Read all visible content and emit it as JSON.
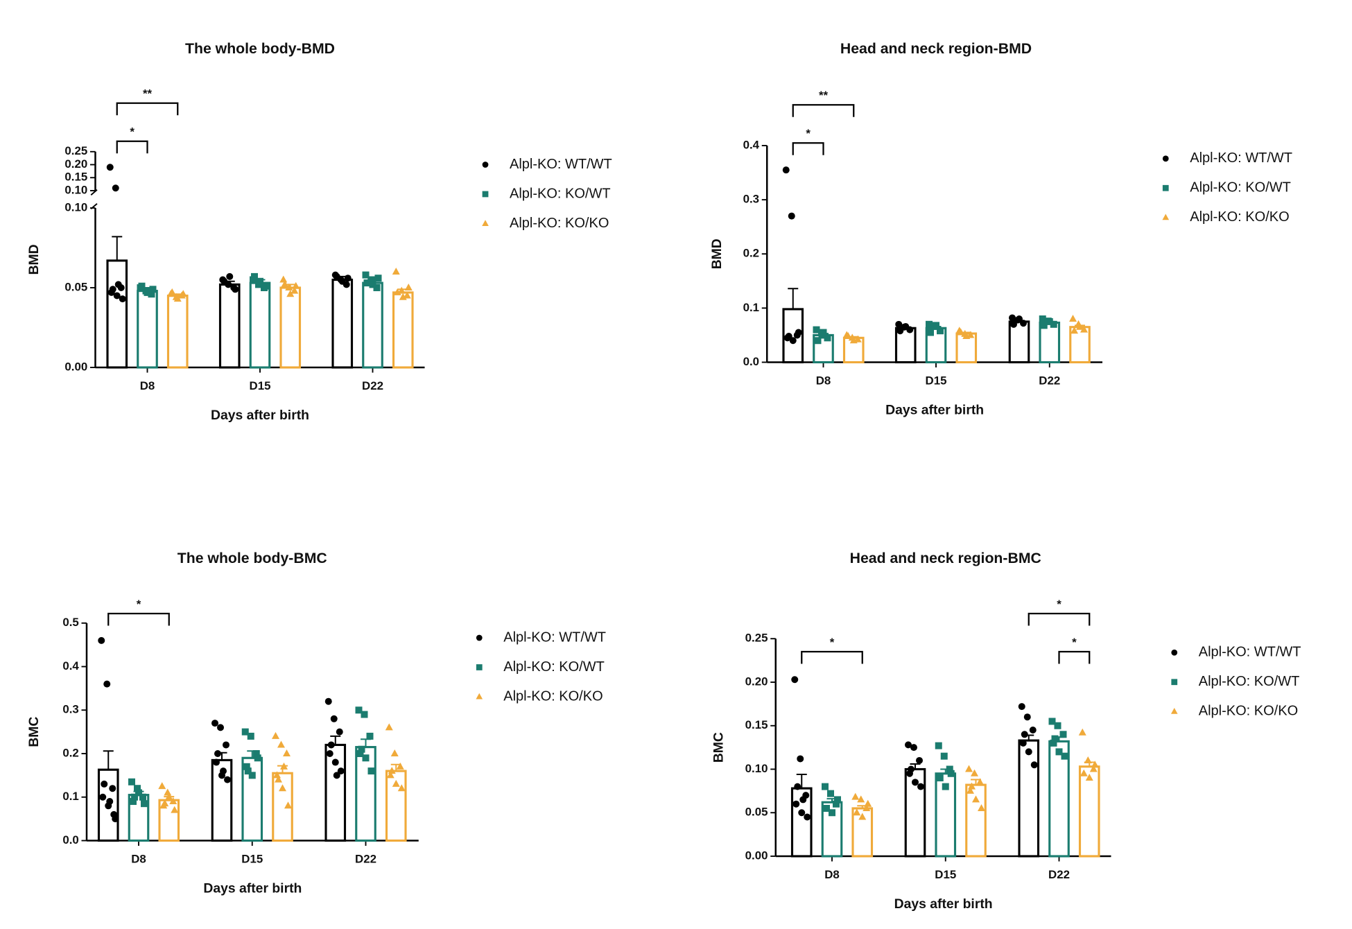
{
  "chart_data": [
    {
      "type": "bar",
      "title": "The whole body-BMD",
      "xlabel": "Days after birth",
      "ylabel": "BMD",
      "categories": [
        "D8",
        "D15",
        "D22"
      ],
      "ylim": [
        0,
        0.1
      ],
      "yticks": [
        {
          "value": 0,
          "label": "0.00"
        },
        0.05,
        {
          "value": 0.1,
          "label": "0.10"
        }
      ],
      "ybreak": {
        "ylim": [
          0.1,
          0.25
        ],
        "yticks": [
          {
            "value": 0.1,
            "label": "0.10"
          },
          0.15,
          {
            "value": 0.2,
            "label": "0.20"
          },
          0.25
        ]
      },
      "series": [
        {
          "name": "Alpl-KO: WT/WT",
          "color": "#000000",
          "marker": "circle",
          "values": [
            0.067,
            0.052,
            0.055
          ],
          "errors": [
            0.015,
            0.002,
            0.002
          ],
          "points": [
            [
              0.19,
              0.11,
              0.05,
              0.047,
              0.045,
              0.043,
              0.049,
              0.052
            ],
            [
              0.055,
              0.052,
              0.05,
              0.054,
              0.057,
              0.049
            ],
            [
              0.058,
              0.055,
              0.052,
              0.057,
              0.054,
              0.056
            ]
          ]
        },
        {
          "name": "Alpl-KO: KO/WT",
          "color": "#1b7c6f",
          "marker": "square",
          "values": [
            0.048,
            0.053,
            0.053
          ],
          "errors": [
            0.002,
            0.002,
            0.002
          ],
          "points": [
            [
              0.05,
              0.048,
              0.046,
              0.051,
              0.047,
              0.049
            ],
            [
              0.055,
              0.052,
              0.05,
              0.057,
              0.054,
              0.051
            ],
            [
              0.058,
              0.055,
              0.05,
              0.053,
              0.052,
              0.056
            ]
          ]
        },
        {
          "name": "Alpl-KO: KO/KO",
          "color": "#f0aa3a",
          "marker": "triangle",
          "values": [
            0.045,
            0.05,
            0.047
          ],
          "errors": [
            0.001,
            0.002,
            0.002
          ],
          "points": [
            [
              0.046,
              0.044,
              0.045,
              0.047,
              0.043,
              0.046
            ],
            [
              0.055,
              0.05,
              0.048,
              0.052,
              0.046,
              0.051
            ],
            [
              0.06,
              0.048,
              0.045,
              0.047,
              0.044,
              0.05
            ]
          ]
        }
      ],
      "significance": [
        {
          "label": "*",
          "from": [
            0,
            0
          ],
          "to": [
            0,
            1
          ]
        },
        {
          "label": "**",
          "from": [
            0,
            0
          ],
          "to": [
            0,
            2
          ]
        }
      ]
    },
    {
      "type": "bar",
      "title": "Head and neck region-BMD",
      "xlabel": "Days after birth",
      "ylabel": "BMD",
      "categories": [
        "D8",
        "D15",
        "D22"
      ],
      "ylim": [
        0,
        0.4
      ],
      "yticks": [
        {
          "value": 0,
          "label": "0.0"
        },
        0.1,
        0.2,
        0.3,
        0.4
      ],
      "series": [
        {
          "name": "Alpl-KO: WT/WT",
          "color": "#000000",
          "marker": "circle",
          "values": [
            0.098,
            0.063,
            0.075
          ],
          "errors": [
            0.038,
            0.002,
            0.002
          ],
          "points": [
            [
              0.355,
              0.27,
              0.05,
              0.045,
              0.04,
              0.055,
              0.048
            ],
            [
              0.07,
              0.065,
              0.06,
              0.058,
              0.066
            ],
            [
              0.082,
              0.078,
              0.072,
              0.07,
              0.08
            ]
          ]
        },
        {
          "name": "Alpl-KO: KO/WT",
          "color": "#1b7c6f",
          "marker": "square",
          "values": [
            0.05,
            0.063,
            0.073
          ],
          "errors": [
            0.003,
            0.003,
            0.002
          ],
          "points": [
            [
              0.06,
              0.05,
              0.045,
              0.04,
              0.055
            ],
            [
              0.07,
              0.066,
              0.058,
              0.055,
              0.068
            ],
            [
              0.08,
              0.076,
              0.07,
              0.068,
              0.075
            ]
          ]
        },
        {
          "name": "Alpl-KO: KO/KO",
          "color": "#f0aa3a",
          "marker": "triangle",
          "values": [
            0.045,
            0.053,
            0.065
          ],
          "errors": [
            0.002,
            0.002,
            0.003
          ],
          "points": [
            [
              0.05,
              0.045,
              0.042,
              0.048,
              0.04
            ],
            [
              0.058,
              0.052,
              0.05,
              0.055,
              0.048
            ],
            [
              0.08,
              0.07,
              0.06,
              0.058,
              0.065
            ]
          ]
        }
      ],
      "significance": [
        {
          "label": "*",
          "from": [
            0,
            0
          ],
          "to": [
            0,
            1
          ]
        },
        {
          "label": "**",
          "from": [
            0,
            0
          ],
          "to": [
            0,
            2
          ]
        }
      ]
    },
    {
      "type": "bar",
      "title": "The whole body-BMC",
      "xlabel": "Days after birth",
      "ylabel": "BMC",
      "categories": [
        "D8",
        "D15",
        "D22"
      ],
      "ylim": [
        0,
        0.5
      ],
      "yticks": [
        {
          "value": 0,
          "label": "0.0"
        },
        0.1,
        0.2,
        0.3,
        0.4,
        0.5
      ],
      "series": [
        {
          "name": "Alpl-KO: WT/WT",
          "color": "#000000",
          "marker": "circle",
          "values": [
            0.163,
            0.185,
            0.22
          ],
          "errors": [
            0.043,
            0.017,
            0.02
          ],
          "points": [
            [
              0.46,
              0.36,
              0.12,
              0.1,
              0.08,
              0.06,
              0.13,
              0.09,
              0.05
            ],
            [
              0.27,
              0.26,
              0.22,
              0.18,
              0.15,
              0.14,
              0.2,
              0.16
            ],
            [
              0.32,
              0.28,
              0.25,
              0.2,
              0.18,
              0.16,
              0.22,
              0.15
            ]
          ]
        },
        {
          "name": "Alpl-KO: KO/WT",
          "color": "#1b7c6f",
          "marker": "square",
          "values": [
            0.105,
            0.19,
            0.215
          ],
          "errors": [
            0.008,
            0.016,
            0.018
          ],
          "points": [
            [
              0.135,
              0.12,
              0.1,
              0.09,
              0.11,
              0.085,
              0.1
            ],
            [
              0.25,
              0.24,
              0.2,
              0.17,
              0.15,
              0.19,
              0.16
            ],
            [
              0.3,
              0.29,
              0.24,
              0.2,
              0.19,
              0.16,
              0.21
            ]
          ]
        },
        {
          "name": "Alpl-KO: KO/KO",
          "color": "#f0aa3a",
          "marker": "triangle",
          "values": [
            0.093,
            0.155,
            0.16
          ],
          "errors": [
            0.008,
            0.017,
            0.015
          ],
          "points": [
            [
              0.125,
              0.11,
              0.09,
              0.08,
              0.1,
              0.07,
              0.085
            ],
            [
              0.24,
              0.22,
              0.2,
              0.15,
              0.12,
              0.08,
              0.14,
              0.17
            ],
            [
              0.26,
              0.2,
              0.17,
              0.15,
              0.13,
              0.12,
              0.16
            ]
          ]
        }
      ],
      "significance": [
        {
          "label": "*",
          "from": [
            0,
            0
          ],
          "to": [
            0,
            2
          ]
        }
      ]
    },
    {
      "type": "bar",
      "title": "Head and neck region-BMC",
      "xlabel": "Days after birth",
      "ylabel": "BMC",
      "categories": [
        "D8",
        "D15",
        "D22"
      ],
      "ylim": [
        0,
        0.25
      ],
      "yticks": [
        {
          "value": 0,
          "label": "0.00"
        },
        0.05,
        {
          "value": 0.1,
          "label": "0.10"
        },
        0.15,
        {
          "value": 0.2,
          "label": "0.20"
        },
        0.25
      ],
      "series": [
        {
          "name": "Alpl-KO: WT/WT",
          "color": "#000000",
          "marker": "circle",
          "values": [
            0.078,
            0.1,
            0.133
          ],
          "errors": [
            0.016,
            0.006,
            0.006
          ],
          "points": [
            [
              0.203,
              0.112,
              0.07,
              0.06,
              0.05,
              0.045,
              0.08,
              0.065
            ],
            [
              0.128,
              0.125,
              0.11,
              0.095,
              0.085,
              0.08,
              0.1
            ],
            [
              0.172,
              0.16,
              0.145,
              0.13,
              0.12,
              0.105,
              0.14
            ]
          ]
        },
        {
          "name": "Alpl-KO: KO/WT",
          "color": "#1b7c6f",
          "marker": "square",
          "values": [
            0.062,
            0.095,
            0.132
          ],
          "errors": [
            0.004,
            0.005,
            0.005
          ],
          "points": [
            [
              0.08,
              0.072,
              0.06,
              0.055,
              0.05,
              0.065
            ],
            [
              0.127,
              0.115,
              0.1,
              0.09,
              0.08,
              0.095
            ],
            [
              0.155,
              0.15,
              0.14,
              0.13,
              0.12,
              0.115,
              0.135
            ]
          ]
        },
        {
          "name": "Alpl-KO: KO/KO",
          "color": "#f0aa3a",
          "marker": "triangle",
          "values": [
            0.055,
            0.082,
            0.103
          ],
          "errors": [
            0.003,
            0.006,
            0.005
          ],
          "points": [
            [
              0.068,
              0.065,
              0.055,
              0.05,
              0.045,
              0.06
            ],
            [
              0.1,
              0.095,
              0.085,
              0.075,
              0.065,
              0.055,
              0.08
            ],
            [
              0.142,
              0.11,
              0.1,
              0.095,
              0.09,
              0.105
            ]
          ]
        }
      ],
      "significance": [
        {
          "label": "*",
          "from": [
            0,
            0
          ],
          "to": [
            0,
            2
          ]
        },
        {
          "label": "*",
          "from": [
            2,
            1
          ],
          "to": [
            2,
            2
          ]
        },
        {
          "label": "*",
          "from": [
            2,
            0
          ],
          "to": [
            2,
            2
          ]
        }
      ]
    }
  ]
}
